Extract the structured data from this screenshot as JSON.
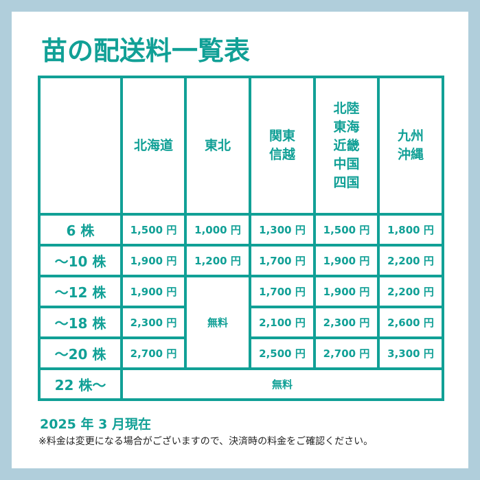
{
  "title": "苗の配送料一覧表",
  "table": {
    "corner": "",
    "regions": [
      "北海道",
      "東北",
      "関東\n信越",
      "北陸\n東海\n近畿\n中国\n四国",
      "九州\n沖縄"
    ],
    "rows": [
      {
        "label": "6 株",
        "prices": [
          "1,500 円",
          "1,000 円",
          "1,300 円",
          "1,500 円",
          "1,800 円"
        ]
      },
      {
        "label": "～10 株",
        "prices": [
          "1,900 円",
          "1,200 円",
          "1,700 円",
          "1,900 円",
          "2,200 円"
        ]
      },
      {
        "label": "～12 株",
        "prices": [
          "1,900 円",
          "無料",
          "1,700 円",
          "1,900 円",
          "2,200 円"
        ]
      },
      {
        "label": "～18 株",
        "prices": [
          "2,300 円",
          null,
          "2,100 円",
          "2,300 円",
          "2,600 円"
        ]
      },
      {
        "label": "～20 株",
        "prices": [
          "2,700 円",
          null,
          "2,500 円",
          "2,700 円",
          "3,300 円"
        ]
      },
      {
        "label": "22 株～",
        "prices": [
          "無料"
        ]
      }
    ]
  },
  "date": "2025 年 3 月現在",
  "note": "※料金は変更になる場合がございますので、決済時の料金をご確認ください。",
  "colors": {
    "accent": "#11a096",
    "frame": "#b0cedb"
  }
}
